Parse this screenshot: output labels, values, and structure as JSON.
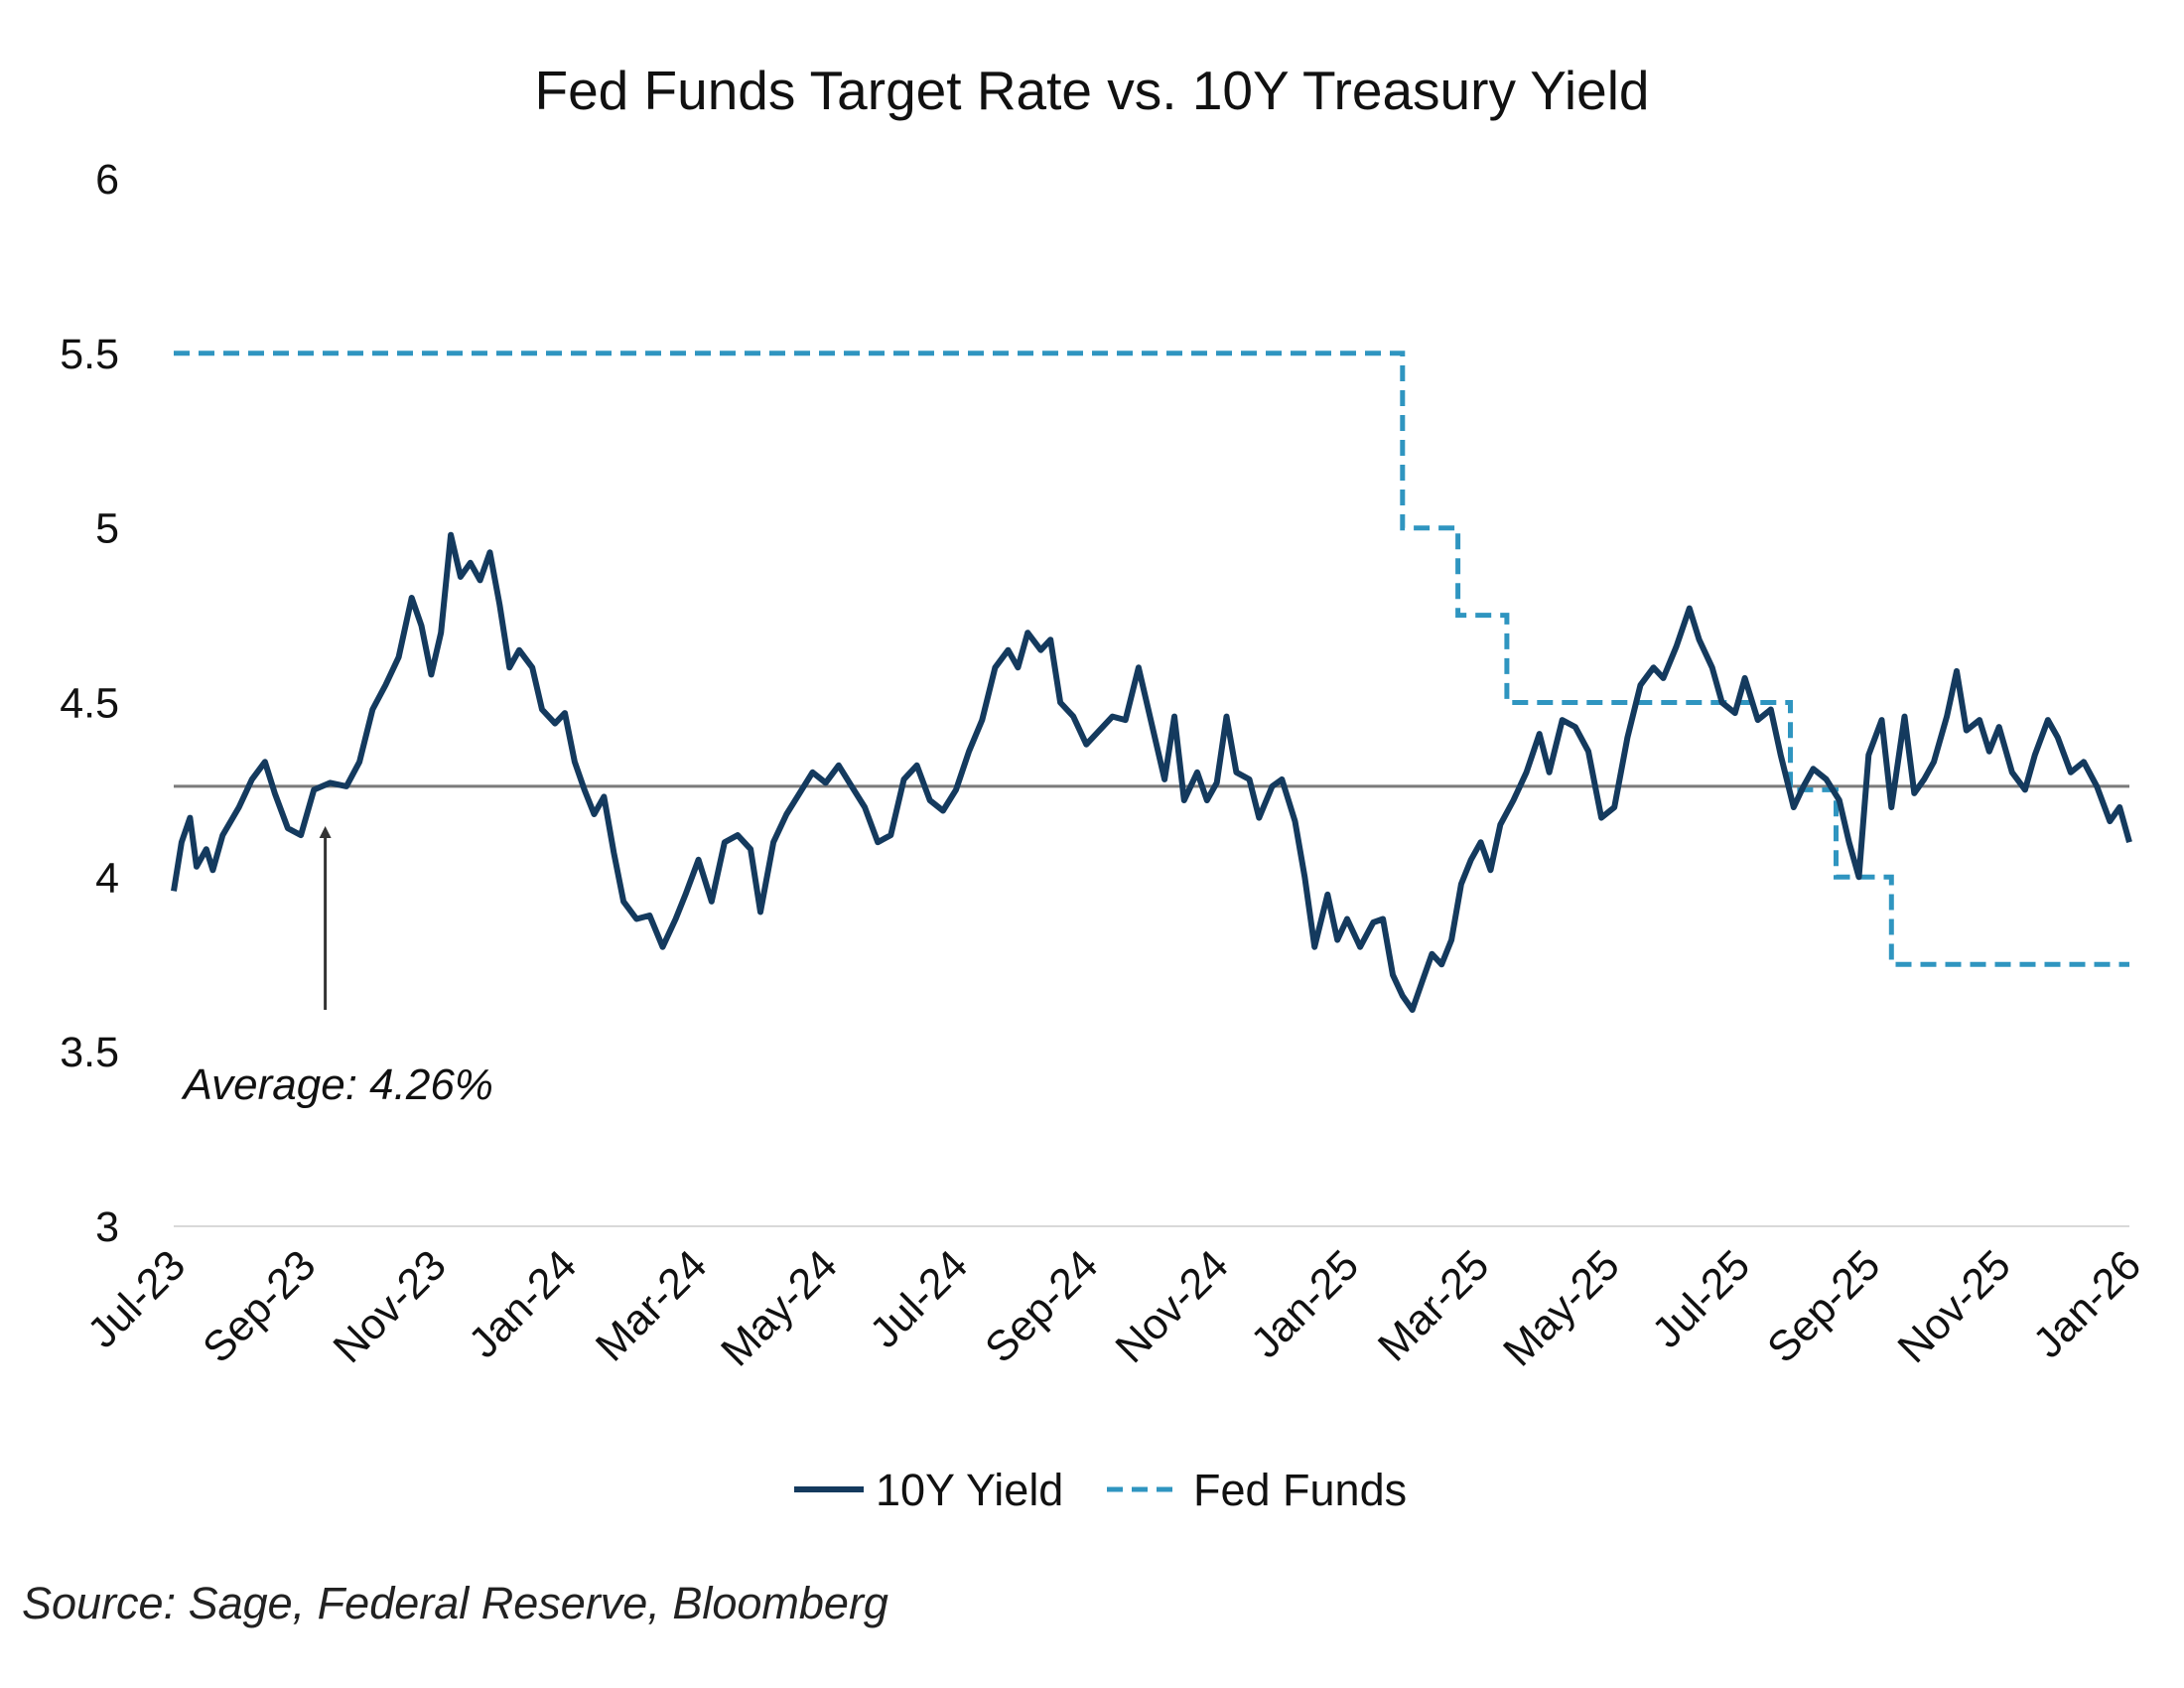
{
  "chart_data": {
    "type": "line",
    "title": "Fed Funds Target Rate vs. 10Y Treasury Yield",
    "xlabel": "",
    "ylabel": "",
    "ylim": [
      3,
      6
    ],
    "yticks": [
      "3",
      "3.5",
      "4",
      "4.5",
      "5",
      "5.5",
      "6"
    ],
    "x_month_range": [
      0,
      30
    ],
    "xtick_labels": [
      "Jul-23",
      "Sep-23",
      "Nov-23",
      "Jan-24",
      "Mar-24",
      "May-24",
      "Jul-24",
      "Sep-24",
      "Nov-24",
      "Jan-25",
      "Mar-25",
      "May-25",
      "Jul-25",
      "Sep-25",
      "Nov-25",
      "Jan-26"
    ],
    "grid": false,
    "legend_position": "bottom-center",
    "series": [
      {
        "name": "10Y Yield",
        "style": "solid",
        "color": "#143a5e",
        "points": [
          [
            0,
            3.96
          ],
          [
            0.12,
            4.1
          ],
          [
            0.25,
            4.17
          ],
          [
            0.35,
            4.03
          ],
          [
            0.5,
            4.08
          ],
          [
            0.6,
            4.02
          ],
          [
            0.75,
            4.12
          ],
          [
            1,
            4.2
          ],
          [
            1.2,
            4.28
          ],
          [
            1.4,
            4.33
          ],
          [
            1.55,
            4.24
          ],
          [
            1.75,
            4.14
          ],
          [
            1.95,
            4.12
          ],
          [
            2.15,
            4.25
          ],
          [
            2.4,
            4.27
          ],
          [
            2.65,
            4.26
          ],
          [
            2.85,
            4.33
          ],
          [
            3.05,
            4.48
          ],
          [
            3.25,
            4.55
          ],
          [
            3.45,
            4.63
          ],
          [
            3.65,
            4.8
          ],
          [
            3.8,
            4.72
          ],
          [
            3.95,
            4.58
          ],
          [
            4.1,
            4.7
          ],
          [
            4.25,
            4.98
          ],
          [
            4.4,
            4.86
          ],
          [
            4.55,
            4.9
          ],
          [
            4.7,
            4.85
          ],
          [
            4.85,
            4.93
          ],
          [
            5,
            4.78
          ],
          [
            5.15,
            4.6
          ],
          [
            5.3,
            4.65
          ],
          [
            5.5,
            4.6
          ],
          [
            5.65,
            4.48
          ],
          [
            5.85,
            4.44
          ],
          [
            6,
            4.47
          ],
          [
            6.15,
            4.33
          ],
          [
            6.3,
            4.25
          ],
          [
            6.45,
            4.18
          ],
          [
            6.6,
            4.23
          ],
          [
            6.75,
            4.07
          ],
          [
            6.9,
            3.93
          ],
          [
            7.1,
            3.88
          ],
          [
            7.3,
            3.89
          ],
          [
            7.5,
            3.8
          ],
          [
            7.7,
            3.88
          ],
          [
            7.85,
            3.95
          ],
          [
            8.05,
            4.05
          ],
          [
            8.25,
            3.93
          ],
          [
            8.45,
            4.1
          ],
          [
            8.65,
            4.12
          ],
          [
            8.85,
            4.08
          ],
          [
            9,
            3.9
          ],
          [
            9.2,
            4.1
          ],
          [
            9.4,
            4.18
          ],
          [
            9.6,
            4.24
          ],
          [
            9.8,
            4.3
          ],
          [
            10,
            4.27
          ],
          [
            10.2,
            4.32
          ],
          [
            10.4,
            4.26
          ],
          [
            10.6,
            4.2
          ],
          [
            10.8,
            4.1
          ],
          [
            11,
            4.12
          ],
          [
            11.2,
            4.28
          ],
          [
            11.4,
            4.32
          ],
          [
            11.6,
            4.22
          ],
          [
            11.8,
            4.19
          ],
          [
            12,
            4.25
          ],
          [
            12.2,
            4.36
          ],
          [
            12.4,
            4.45
          ],
          [
            12.6,
            4.6
          ],
          [
            12.8,
            4.65
          ],
          [
            12.95,
            4.6
          ],
          [
            13.1,
            4.7
          ],
          [
            13.3,
            4.65
          ],
          [
            13.45,
            4.68
          ],
          [
            13.6,
            4.5
          ],
          [
            13.8,
            4.46
          ],
          [
            14,
            4.38
          ],
          [
            14.2,
            4.42
          ],
          [
            14.4,
            4.46
          ],
          [
            14.6,
            4.45
          ],
          [
            14.8,
            4.6
          ],
          [
            15,
            4.44
          ],
          [
            15.2,
            4.28
          ],
          [
            15.35,
            4.46
          ],
          [
            15.5,
            4.22
          ],
          [
            15.7,
            4.3
          ],
          [
            15.85,
            4.22
          ],
          [
            16,
            4.27
          ],
          [
            16.15,
            4.46
          ],
          [
            16.3,
            4.3
          ],
          [
            16.5,
            4.28
          ],
          [
            16.65,
            4.17
          ],
          [
            16.85,
            4.26
          ],
          [
            17,
            4.28
          ],
          [
            17.2,
            4.16
          ],
          [
            17.35,
            4.0
          ],
          [
            17.5,
            3.8
          ],
          [
            17.7,
            3.95
          ],
          [
            17.85,
            3.82
          ],
          [
            18,
            3.88
          ],
          [
            18.2,
            3.8
          ],
          [
            18.4,
            3.87
          ],
          [
            18.55,
            3.88
          ],
          [
            18.7,
            3.72
          ],
          [
            18.85,
            3.66
          ],
          [
            19,
            3.62
          ],
          [
            19.15,
            3.7
          ],
          [
            19.3,
            3.78
          ],
          [
            19.45,
            3.75
          ],
          [
            19.6,
            3.82
          ],
          [
            19.75,
            3.98
          ],
          [
            19.9,
            4.05
          ],
          [
            20.05,
            4.1
          ],
          [
            20.2,
            4.02
          ],
          [
            20.35,
            4.15
          ],
          [
            20.55,
            4.22
          ],
          [
            20.75,
            4.3
          ],
          [
            20.95,
            4.41
          ],
          [
            21.1,
            4.3
          ],
          [
            21.3,
            4.45
          ],
          [
            21.5,
            4.43
          ],
          [
            21.7,
            4.36
          ],
          [
            21.9,
            4.17
          ],
          [
            22.1,
            4.2
          ],
          [
            22.3,
            4.4
          ],
          [
            22.5,
            4.55
          ],
          [
            22.7,
            4.6
          ],
          [
            22.85,
            4.57
          ],
          [
            23.05,
            4.66
          ],
          [
            23.25,
            4.77
          ],
          [
            23.4,
            4.68
          ],
          [
            23.6,
            4.6
          ],
          [
            23.75,
            4.5
          ],
          [
            23.95,
            4.47
          ],
          [
            24.1,
            4.57
          ],
          [
            24.3,
            4.45
          ],
          [
            24.5,
            4.48
          ],
          [
            24.65,
            4.35
          ],
          [
            24.85,
            4.2
          ],
          [
            25,
            4.26
          ],
          [
            25.15,
            4.31
          ],
          [
            25.35,
            4.28
          ],
          [
            25.55,
            4.22
          ],
          [
            25.7,
            4.1
          ],
          [
            25.85,
            4.0
          ],
          [
            26,
            4.35
          ],
          [
            26.2,
            4.45
          ],
          [
            26.35,
            4.2
          ],
          [
            26.55,
            4.46
          ],
          [
            26.7,
            4.24
          ],
          [
            26.85,
            4.28
          ],
          [
            27,
            4.33
          ],
          [
            27.2,
            4.46
          ],
          [
            27.35,
            4.59
          ],
          [
            27.5,
            4.42
          ],
          [
            27.7,
            4.45
          ],
          [
            27.85,
            4.36
          ],
          [
            28,
            4.43
          ],
          [
            28.2,
            4.3
          ],
          [
            28.4,
            4.25
          ],
          [
            28.55,
            4.35
          ],
          [
            28.75,
            4.45
          ],
          [
            28.9,
            4.4
          ],
          [
            29.1,
            4.3
          ],
          [
            29.3,
            4.33
          ],
          [
            29.5,
            4.26
          ],
          [
            29.7,
            4.16
          ],
          [
            29.85,
            4.2
          ],
          [
            30,
            4.1
          ]
        ]
      },
      {
        "name": "Fed Funds",
        "style": "dashed",
        "color": "#2f95c0",
        "points": [
          [
            0,
            5.5
          ],
          [
            18.85,
            5.5
          ],
          [
            18.85,
            5.0
          ],
          [
            19.7,
            5.0
          ],
          [
            19.7,
            4.75
          ],
          [
            20.45,
            4.75
          ],
          [
            20.45,
            4.5
          ],
          [
            22.55,
            4.5
          ],
          [
            22.55,
            4.5
          ],
          [
            24.8,
            4.5
          ],
          [
            24.8,
            4.25
          ],
          [
            25.5,
            4.25
          ],
          [
            25.5,
            4.0
          ],
          [
            26.35,
            4.0
          ],
          [
            26.35,
            3.75
          ],
          [
            30,
            3.75
          ]
        ]
      },
      {
        "name": "Average",
        "style": "reference",
        "color": "#7a7a7a",
        "value": 4.26
      }
    ],
    "annotations": [
      {
        "text": "Average: 4.26%",
        "x_month": 2.05,
        "y_value": 3.45,
        "arrow_from_value": 3.62,
        "arrow_to_value": 4.18
      }
    ]
  },
  "source_note": "Source: Sage, Federal Reserve, Bloomberg",
  "legend": [
    {
      "label": "10Y Yield",
      "style": "solid",
      "color": "#143a5e"
    },
    {
      "label": "Fed Funds",
      "style": "dashed",
      "color": "#2f95c0"
    }
  ]
}
